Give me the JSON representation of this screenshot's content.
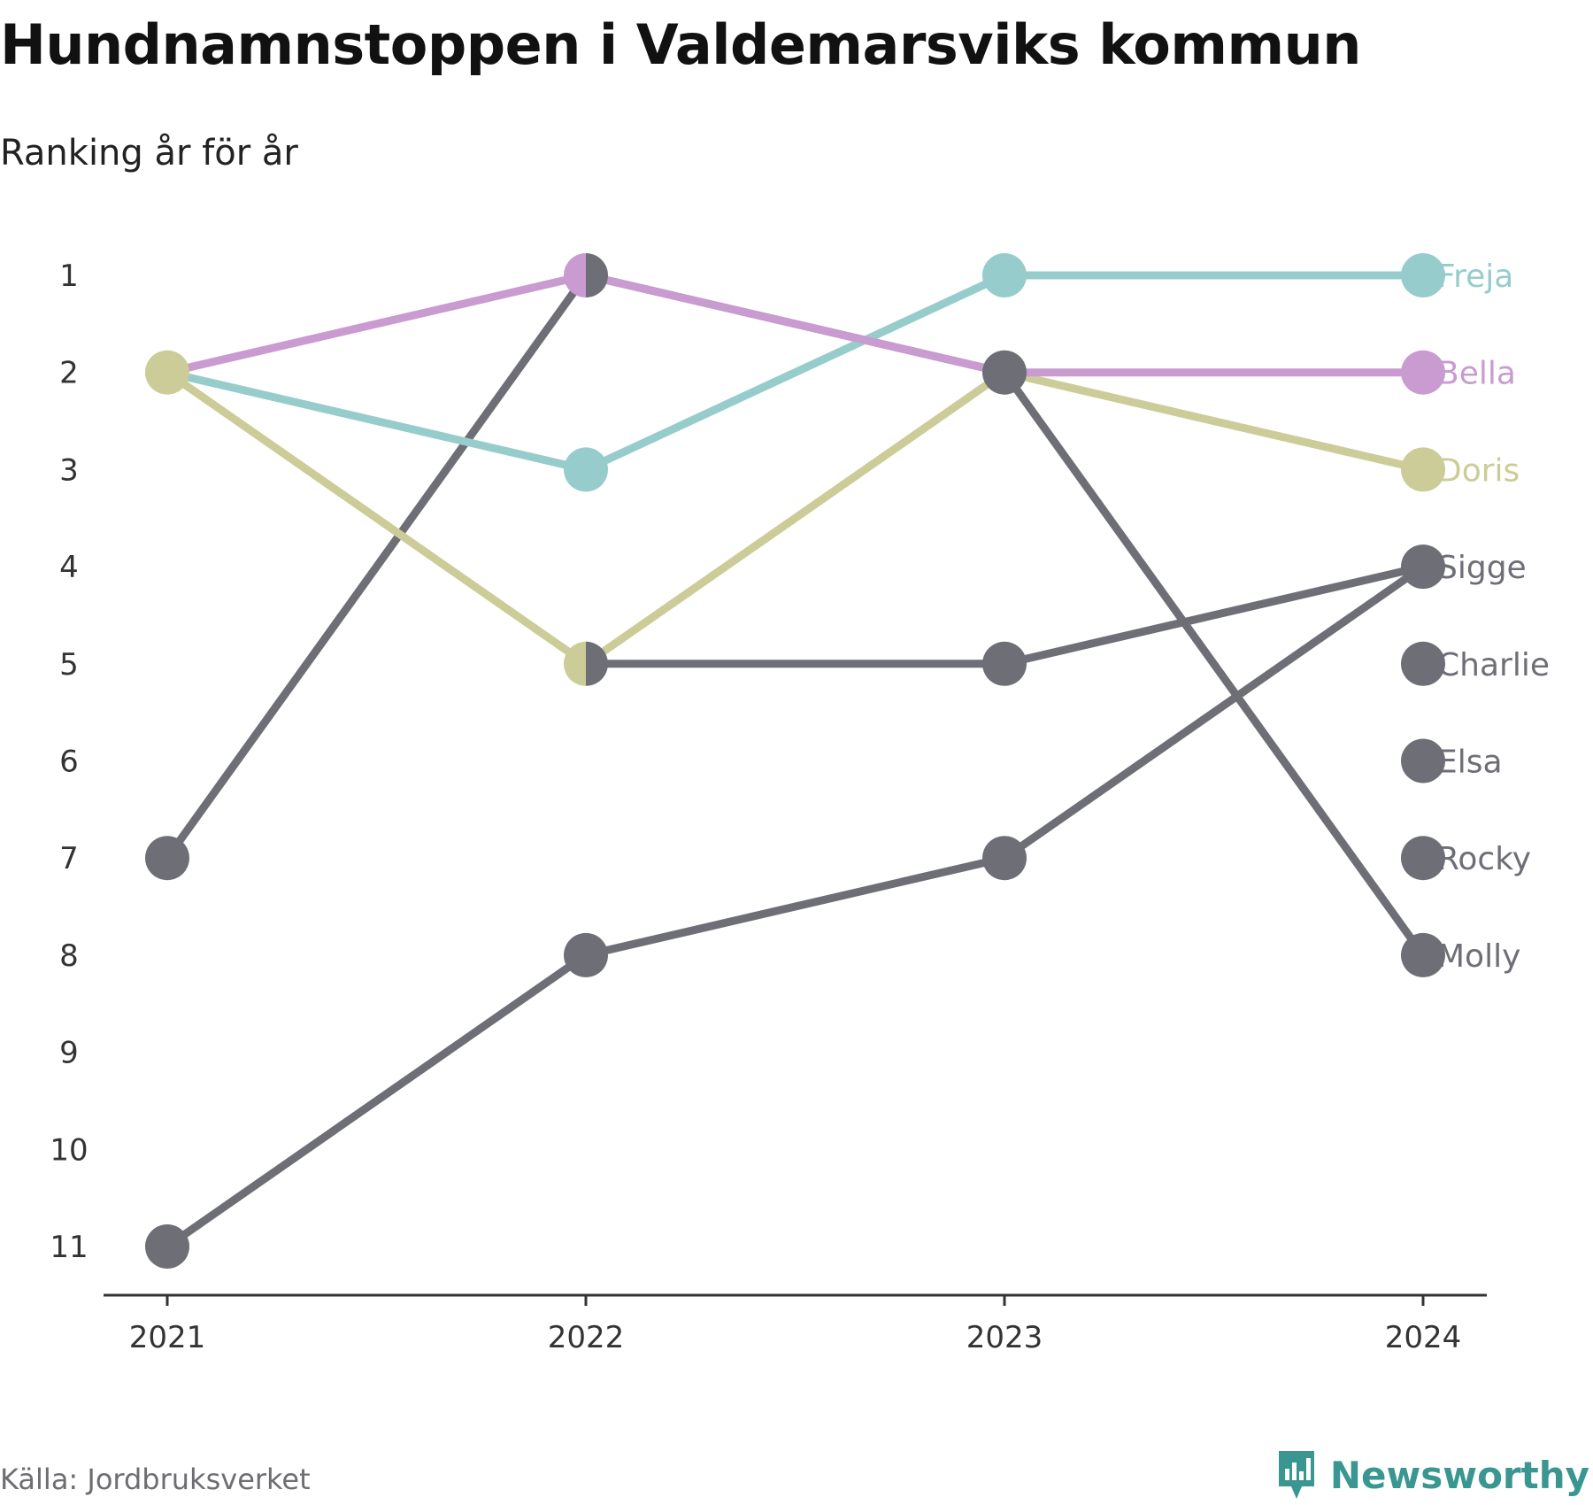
{
  "title": "Hundnamnstoppen i Valdemarsviks kommun",
  "subtitle": "Ranking år för år",
  "source": "Källa: Jordbruksverket",
  "brand": "Newsworthy",
  "brand_icon": "newsworthy-logo-icon",
  "colors": {
    "freja": "#97cccc",
    "bella": "#c99bd0",
    "doris": "#cccc99",
    "other": "#6e6e76",
    "axis": "#333333",
    "brand": "#3a9690"
  },
  "chart_data": {
    "type": "line",
    "chart_subtype": "bump",
    "x": [
      "2021",
      "2022",
      "2023",
      "2024"
    ],
    "y_ticks": [
      "1",
      "2",
      "3",
      "4",
      "5",
      "6",
      "7",
      "8",
      "9",
      "10",
      "11"
    ],
    "ylim": [
      1,
      11
    ],
    "y_reversed": true,
    "grid": false,
    "series": [
      {
        "name": "Freja",
        "color": "#97cccc",
        "values": [
          2,
          3,
          1,
          1
        ]
      },
      {
        "name": "Bella",
        "color": "#c99bd0",
        "values": [
          2,
          1,
          2,
          2
        ]
      },
      {
        "name": "Doris",
        "color": "#cccc99",
        "values": [
          2,
          5,
          2,
          3
        ]
      },
      {
        "name": "Sigge",
        "color": "#6e6e76",
        "values": [
          null,
          5,
          5,
          4
        ]
      },
      {
        "name": "Charlie",
        "color": "#6e6e76",
        "values": [
          null,
          null,
          null,
          5
        ]
      },
      {
        "name": "Elsa",
        "color": "#6e6e76",
        "values": [
          null,
          null,
          null,
          6
        ]
      },
      {
        "name": "Rocky",
        "color": "#6e6e76",
        "values": [
          null,
          null,
          null,
          7
        ]
      },
      {
        "name": "Molly",
        "color": "#6e6e76",
        "values": [
          7,
          1,
          2,
          8
        ]
      },
      {
        "name": "",
        "color": "#6e6e76",
        "values": [
          11,
          8,
          7,
          4
        ]
      }
    ]
  }
}
